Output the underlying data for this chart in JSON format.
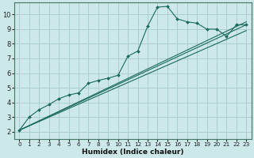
{
  "xlabel": "Humidex (Indice chaleur)",
  "bg_color": "#cce8e8",
  "grid_color": "#aacece",
  "line_color": "#1a6b5a",
  "xlim": [
    -0.5,
    23.5
  ],
  "ylim": [
    1.5,
    10.8
  ],
  "xticks": [
    0,
    1,
    2,
    3,
    4,
    5,
    6,
    7,
    8,
    9,
    10,
    11,
    12,
    13,
    14,
    15,
    16,
    17,
    18,
    19,
    20,
    21,
    22,
    23
  ],
  "yticks": [
    2,
    3,
    4,
    5,
    6,
    7,
    8,
    9,
    10
  ],
  "main_x": [
    0,
    1,
    2,
    3,
    4,
    5,
    6,
    7,
    8,
    9,
    10,
    11,
    12,
    13,
    14,
    15,
    16,
    17,
    18,
    19,
    20,
    21,
    22,
    23
  ],
  "main_y": [
    2.1,
    3.0,
    3.5,
    3.85,
    4.25,
    4.5,
    4.65,
    5.3,
    5.5,
    5.65,
    5.85,
    7.15,
    7.5,
    9.2,
    10.5,
    10.55,
    9.7,
    9.5,
    9.4,
    9.0,
    9.0,
    8.5,
    9.3,
    9.3
  ],
  "line2_x": [
    0,
    23
  ],
  "line2_y": [
    2.1,
    9.5
  ],
  "line3_x": [
    0,
    23
  ],
  "line3_y": [
    2.1,
    9.3
  ],
  "line4_x": [
    0,
    23
  ],
  "line4_y": [
    2.1,
    8.9
  ],
  "spine_color": "#447766",
  "tick_fontsize": 5.5,
  "xlabel_fontsize": 6.5
}
